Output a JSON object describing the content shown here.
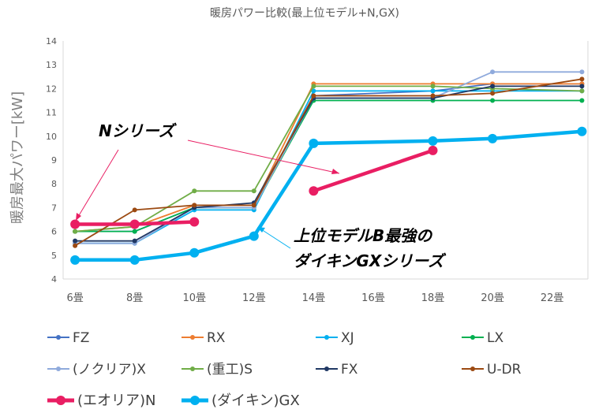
{
  "chart_data": {
    "type": "line",
    "title": "暖房パワー比較(最上位モデル+N,GX)",
    "ylabel": "暖房最大パワー[kW]",
    "xlabel": "",
    "categories": [
      "6畳",
      "8畳",
      "10畳",
      "12畳",
      "14畳",
      "16畳",
      "18畳",
      "20畳",
      "22畳"
    ],
    "x_tick_labels": [
      "6畳",
      "8畳",
      "10畳",
      "12畳",
      "14畳",
      "16畳",
      "18畳",
      "20畳",
      "22畳"
    ],
    "y_tick_labels": [
      "4",
      "5",
      "6",
      "7",
      "8",
      "9",
      "10",
      "11",
      "12",
      "13",
      "14"
    ],
    "ylim": [
      4,
      14
    ],
    "grid": false,
    "legend_position": "bottom",
    "series": [
      {
        "name": "FZ",
        "color": "#4472c4",
        "x": [
          6,
          8,
          10,
          12,
          14,
          18,
          20,
          23
        ],
        "values": [
          6.0,
          6.0,
          7.0,
          7.0,
          11.7,
          11.9,
          12.2,
          12.2
        ],
        "bold": false
      },
      {
        "name": "RX",
        "color": "#ed7d31",
        "x": [
          6,
          8,
          10,
          12,
          14,
          18,
          20,
          23
        ],
        "values": [
          6.0,
          6.2,
          7.1,
          7.1,
          12.2,
          12.2,
          12.2,
          12.2
        ],
        "bold": false
      },
      {
        "name": "XJ",
        "color": "#00b0f0",
        "x": [
          6,
          8,
          10,
          12,
          14,
          18,
          20,
          23
        ],
        "values": [
          5.5,
          5.5,
          6.9,
          6.9,
          11.9,
          11.9,
          11.9,
          11.9
        ],
        "bold": false
      },
      {
        "name": "LX",
        "color": "#00b050",
        "x": [
          6,
          8,
          10,
          12,
          14,
          18,
          20,
          23
        ],
        "values": [
          6.0,
          6.0,
          7.0,
          7.0,
          11.5,
          11.5,
          11.5,
          11.5
        ],
        "bold": false
      },
      {
        "name": "(ノクリア)X",
        "color": "#8faadc",
        "x": [
          6,
          8,
          10,
          12,
          14,
          18,
          20,
          23
        ],
        "values": [
          5.5,
          5.5,
          7.0,
          7.0,
          11.6,
          11.6,
          12.7,
          12.7
        ],
        "bold": false
      },
      {
        "name": "(重工)S",
        "color": "#70ad47",
        "x": [
          6,
          8,
          10,
          12,
          14,
          18,
          20,
          23
        ],
        "values": [
          6.0,
          6.2,
          7.7,
          7.7,
          12.1,
          12.1,
          12.0,
          11.9
        ],
        "bold": false
      },
      {
        "name": "FX",
        "color": "#203864",
        "x": [
          6,
          8,
          10,
          12,
          14,
          18,
          20,
          23
        ],
        "values": [
          5.6,
          5.6,
          7.0,
          7.2,
          11.6,
          11.6,
          12.1,
          12.1
        ],
        "bold": false
      },
      {
        "name": "U-DR",
        "color": "#9c4a12",
        "x": [
          6,
          8,
          10,
          12,
          14,
          18,
          20,
          23
        ],
        "values": [
          5.4,
          6.9,
          7.1,
          7.1,
          11.7,
          11.7,
          11.8,
          12.4
        ],
        "bold": false
      },
      {
        "name": "(エオリア)N",
        "color": "#e91e63",
        "x": [
          6,
          8,
          10
        ],
        "values": [
          6.3,
          6.3,
          6.4
        ],
        "bold": true
      },
      {
        "name": "(エオリア)N",
        "color": "#e91e63",
        "x": [
          14,
          18
        ],
        "values": [
          7.7,
          9.4
        ],
        "bold": true,
        "legend": false
      },
      {
        "name": "(ダイキン)GX",
        "color": "#00b0f0",
        "x": [
          6,
          8,
          10,
          12,
          14,
          18,
          20,
          23
        ],
        "values": [
          4.8,
          4.8,
          5.1,
          5.8,
          9.7,
          9.8,
          9.9,
          10.2
        ],
        "bold": true
      }
    ],
    "annotations": [
      {
        "text": "Nシリーズ"
      },
      {
        "text": "上位モデルB最強の"
      },
      {
        "text": "ダイキンGXシリーズ"
      }
    ]
  }
}
